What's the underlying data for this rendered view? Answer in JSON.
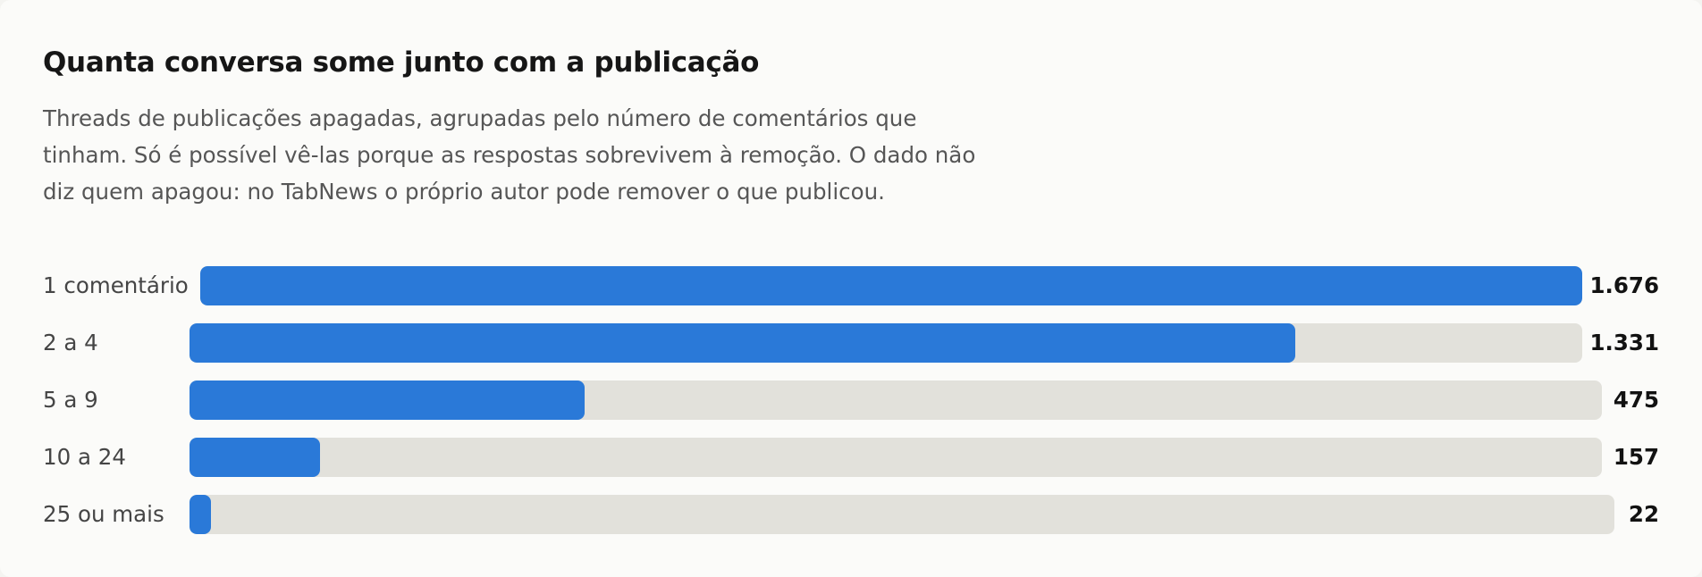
{
  "header": {
    "title": "Quanta conversa some junto com a publicação",
    "subtitle": "Threads de publicações apagadas, agrupadas pelo número de comentários que tinham. Só é possível vê-las porque as respostas sobrevivem à remoção. O dado não diz quem apagou: no TabNews o próprio autor pode remover o que publicou."
  },
  "colors": {
    "bar_fill": "#2a79d8",
    "track": "#e2e1db",
    "background": "#fbfbf9"
  },
  "chart_data": {
    "type": "bar",
    "orientation": "horizontal",
    "title": "Quanta conversa some junto com a publicação",
    "subtitle": "Threads de publicações apagadas, agrupadas pelo número de comentários que tinham. Só é possível vê-las porque as respostas sobrevivem à remoção. O dado não diz quem apagou: no TabNews o próprio autor pode remover o que publicou.",
    "categories": [
      "1 comentário",
      "2 a 4",
      "5 a 9",
      "10 a 24",
      "25 ou mais"
    ],
    "values": [
      1676,
      1331,
      475,
      157,
      22
    ],
    "value_labels": [
      "1.676",
      "1.331",
      "475",
      "157",
      "22"
    ],
    "xlim": [
      0,
      1676
    ],
    "grid": false,
    "legend": "none"
  }
}
